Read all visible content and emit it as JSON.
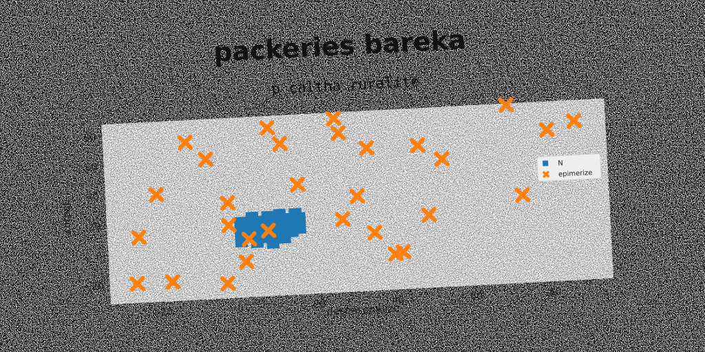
{
  "chart_data": {
    "type": "scatter",
    "title": "packeries bareka",
    "subtitle": "p caltha ruralite",
    "xlabel": "deseasonalize",
    "ylabel": "corpse",
    "xlim": [
      -33,
      95
    ],
    "ylim": [
      -33,
      88
    ],
    "xticks": [
      -20,
      0,
      20,
      40,
      60,
      80
    ],
    "yticks": [
      -20,
      0,
      20,
      40,
      60,
      80
    ],
    "grid": false,
    "legend_position": "center-right",
    "plot_background": "#808080",
    "series": [
      {
        "name": "N",
        "marker": "square",
        "color": "#1f77b4",
        "points": [
          [
            1,
            5
          ],
          [
            1,
            11
          ],
          [
            1,
            17
          ],
          [
            3,
            8
          ],
          [
            3,
            14
          ],
          [
            4,
            20
          ],
          [
            5,
            4
          ],
          [
            5,
            11
          ],
          [
            6,
            17
          ],
          [
            7,
            7
          ],
          [
            8,
            14
          ],
          [
            8,
            20
          ],
          [
            9,
            3
          ],
          [
            10,
            10
          ],
          [
            10,
            17
          ],
          [
            11,
            21
          ],
          [
            12,
            6
          ],
          [
            12,
            13
          ],
          [
            13,
            18
          ],
          [
            14,
            10
          ],
          [
            14,
            16
          ],
          [
            15,
            21
          ],
          [
            16,
            12
          ],
          [
            16,
            18
          ]
        ]
      },
      {
        "name": "epimerize",
        "marker": "x",
        "color": "#ff7f0e",
        "points": [
          [
            -26,
            -20
          ],
          [
            -17,
            -20
          ],
          [
            -3,
            -23
          ],
          [
            -25,
            11
          ],
          [
            -20,
            39
          ],
          [
            -12,
            73
          ],
          [
            -7,
            61
          ],
          [
            -2,
            31
          ],
          [
            -2,
            16
          ],
          [
            2,
            -9
          ],
          [
            3,
            6
          ],
          [
            8,
            11
          ],
          [
            9,
            80
          ],
          [
            12,
            69
          ],
          [
            16,
            41
          ],
          [
            26,
            84
          ],
          [
            27,
            74
          ],
          [
            27,
            16
          ],
          [
            31,
            31
          ],
          [
            34,
            63
          ],
          [
            35,
            6
          ],
          [
            40,
            -9
          ],
          [
            42,
            -8
          ],
          [
            47,
            63
          ],
          [
            49,
            16
          ],
          [
            53,
            53
          ],
          [
            70,
            87
          ],
          [
            73,
            26
          ],
          [
            80,
            69
          ],
          [
            87,
            74
          ]
        ]
      }
    ]
  }
}
